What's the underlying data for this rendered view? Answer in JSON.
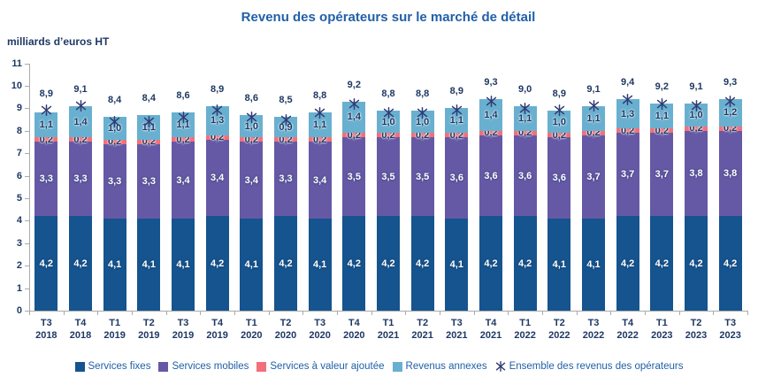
{
  "chart_data": {
    "type": "bar",
    "stacked": true,
    "title": "Revenu des opérateurs sur le marché de détail",
    "ylabel": "milliards d’euros HT",
    "ylim": [
      0,
      11
    ],
    "ytick_step": 1,
    "decimal_separator": ",",
    "grid": false,
    "legend_position": "bottom",
    "categories": [
      "T3 2018",
      "T4 2018",
      "T1 2019",
      "T2 2019",
      "T3 2019",
      "T4 2019",
      "T1 2020",
      "T2 2020",
      "T3 2020",
      "T4 2020",
      "T1 2021",
      "T2 2021",
      "T3 2021",
      "T4 2021",
      "T1 2022",
      "T2 2022",
      "T3 2022",
      "T4 2022",
      "T1 2023",
      "T2 2023",
      "T3 2023"
    ],
    "series": [
      {
        "key": "services-fixes",
        "name": "Services fixes",
        "color": "#15548E",
        "label_color": "#ffffff",
        "label_halo": "dark",
        "values": [
          4.2,
          4.2,
          4.1,
          4.1,
          4.1,
          4.2,
          4.1,
          4.2,
          4.1,
          4.2,
          4.2,
          4.2,
          4.1,
          4.2,
          4.2,
          4.1,
          4.1,
          4.2,
          4.2,
          4.2,
          4.2
        ]
      },
      {
        "key": "services-mobiles",
        "name": "Services mobiles",
        "color": "#6559A5",
        "label_color": "#ffffff",
        "label_halo": "dark",
        "values": [
          3.3,
          3.3,
          3.3,
          3.3,
          3.4,
          3.4,
          3.4,
          3.3,
          3.4,
          3.5,
          3.5,
          3.5,
          3.6,
          3.6,
          3.6,
          3.6,
          3.7,
          3.7,
          3.7,
          3.8,
          3.8
        ]
      },
      {
        "key": "services-valeur-ajoutee",
        "name": "Services à valeur ajoutée",
        "color": "#F1707A",
        "label_color": "#1F3864",
        "label_halo": "light",
        "values": [
          0.2,
          0.2,
          0.2,
          0.2,
          0.2,
          0.2,
          0.2,
          0.2,
          0.2,
          0.2,
          0.2,
          0.2,
          0.2,
          0.2,
          0.2,
          0.2,
          0.2,
          0.2,
          0.2,
          0.2,
          0.2
        ]
      },
      {
        "key": "revenus-annexes",
        "name": "Revenus annexes",
        "color": "#69B0D0",
        "label_color": "#1F3864",
        "label_halo": "light",
        "values": [
          1.1,
          1.4,
          1.0,
          1.1,
          1.1,
          1.3,
          1.0,
          0.9,
          1.1,
          1.4,
          1.0,
          1.0,
          1.1,
          1.4,
          1.1,
          1.0,
          1.1,
          1.3,
          1.1,
          1.0,
          1.2
        ]
      }
    ],
    "marker_series": {
      "key": "ensemble-revenus",
      "name": "Ensemble des revenus des opérateurs",
      "marker": "asterisk",
      "color": "#323B74",
      "values": [
        8.9,
        9.1,
        8.4,
        8.4,
        8.6,
        8.9,
        8.6,
        8.5,
        8.8,
        9.2,
        8.8,
        8.8,
        8.9,
        9.3,
        9.0,
        8.9,
        9.1,
        9.4,
        9.2,
        9.1,
        9.3
      ]
    }
  },
  "colors": {
    "title_text": "#2160A8",
    "axis_text": "#1F3864",
    "value_label_text": "#1F3864",
    "legend_text": "#2160A8",
    "axis_line": "#aaaaaa"
  }
}
